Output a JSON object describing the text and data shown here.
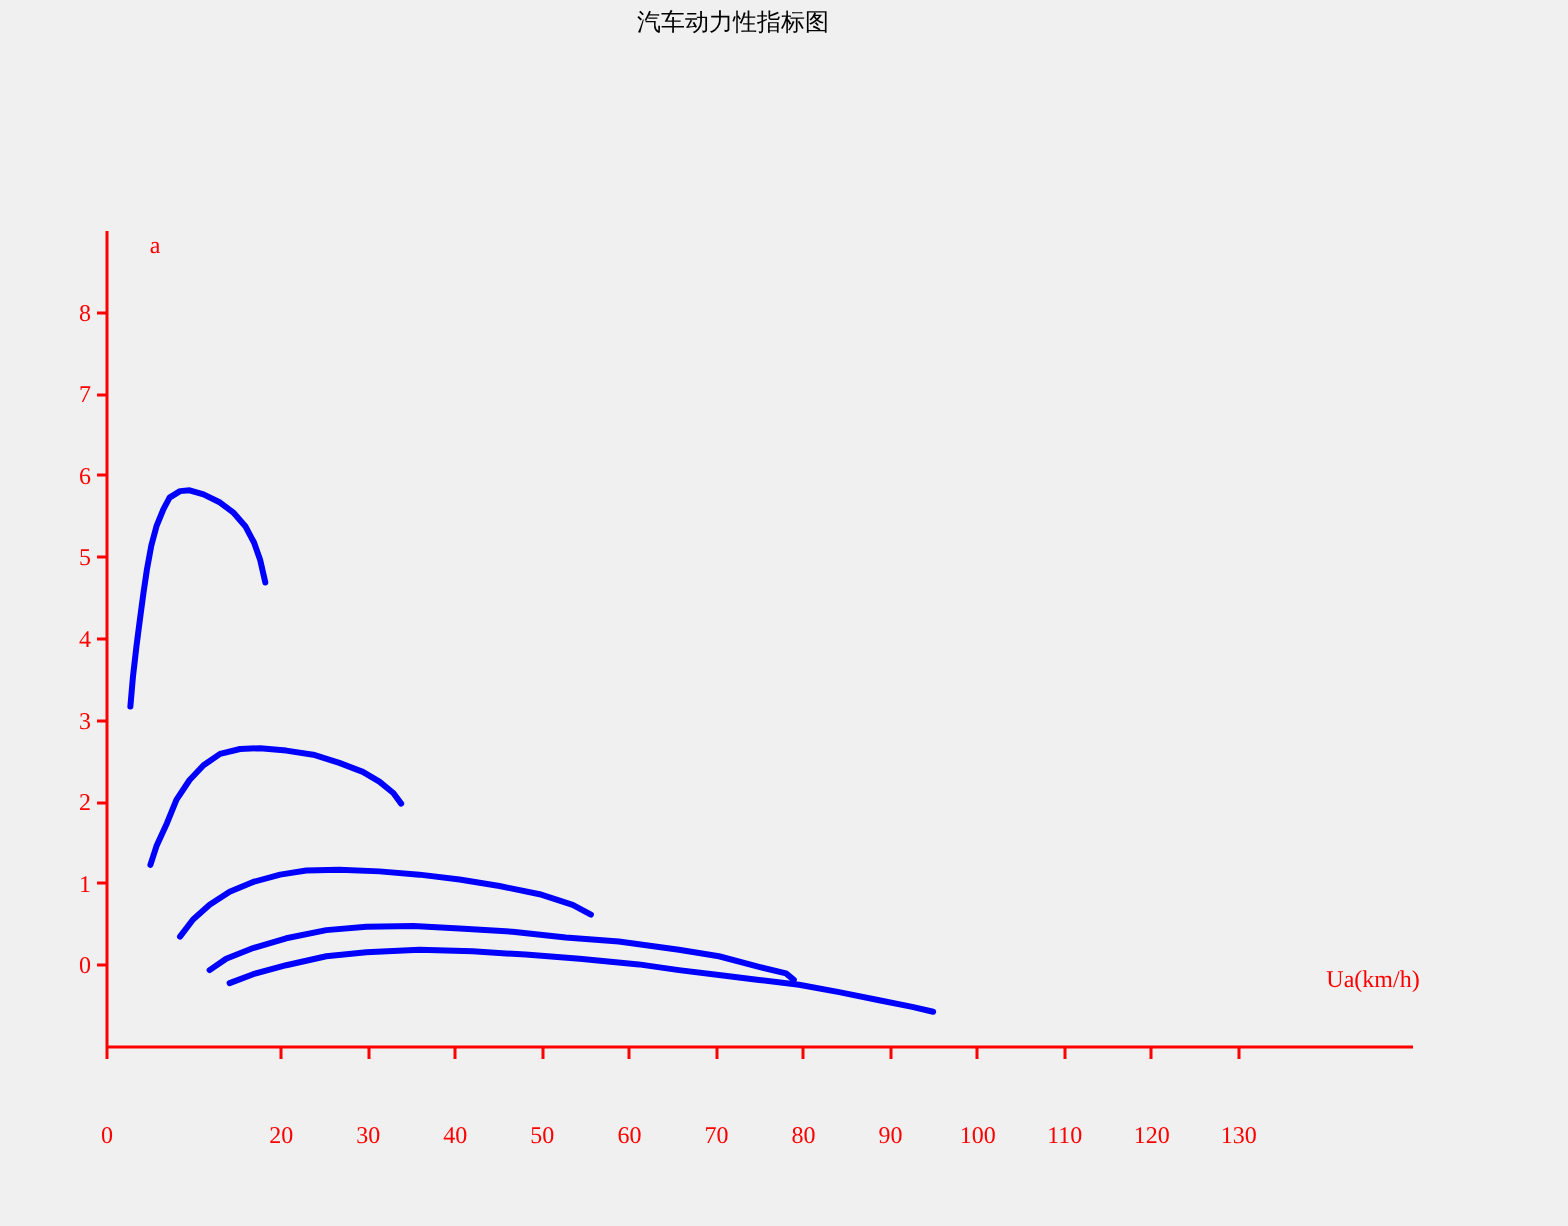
{
  "chart_data": {
    "type": "line",
    "title": "汽车动力性指标图",
    "xlabel": "Ua(km/h)",
    "ylabel": "a",
    "xlim": [
      0,
      150
    ],
    "ylim": [
      -1,
      9
    ],
    "xticks": [
      0,
      20,
      30,
      40,
      50,
      60,
      70,
      80,
      90,
      100,
      110,
      120,
      130
    ],
    "yticks": [
      0,
      1,
      2,
      3,
      4,
      5,
      6,
      7,
      8
    ],
    "grid": false,
    "series": [
      {
        "color": "#0000ff",
        "x": [
          2.8,
          3.1,
          3.5,
          3.9,
          4.3,
          4.7,
          5.2,
          5.8,
          6.6,
          7.3,
          8.5,
          9.6,
          11.2,
          13.1,
          14.6,
          16.0,
          17.0,
          17.7,
          18.3
        ],
        "values": [
          3.16,
          3.53,
          3.9,
          4.23,
          4.55,
          4.84,
          5.13,
          5.37,
          5.58,
          5.72,
          5.8,
          5.81,
          5.76,
          5.66,
          5.54,
          5.37,
          5.17,
          4.96,
          4.68
        ]
      },
      {
        "color": "#0000ff",
        "x": [
          5.1,
          5.8,
          7.0,
          8.1,
          9.6,
          11.2,
          13.1,
          15.4,
          17.7,
          20.7,
          23.8,
          26.8,
          29.5,
          31.4,
          33.0,
          33.9
        ],
        "values": [
          1.22,
          1.45,
          1.73,
          2.02,
          2.26,
          2.44,
          2.58,
          2.64,
          2.65,
          2.62,
          2.57,
          2.47,
          2.36,
          2.24,
          2.1,
          1.97
        ]
      },
      {
        "color": "#0000ff",
        "x": [
          8.5,
          10.0,
          11.9,
          14.2,
          16.9,
          20.0,
          23.0,
          26.8,
          31.4,
          36.0,
          40.6,
          45.2,
          49.8,
          53.6,
          55.7
        ],
        "values": [
          0.34,
          0.55,
          0.73,
          0.89,
          1.01,
          1.1,
          1.15,
          1.16,
          1.14,
          1.1,
          1.04,
          0.96,
          0.86,
          0.73,
          0.61
        ]
      },
      {
        "color": "#0000ff",
        "x": [
          11.9,
          13.8,
          16.9,
          20.7,
          25.3,
          29.9,
          35.3,
          40.6,
          46.7,
          52.8,
          58.9,
          65.8,
          70.4,
          75.0,
          78.1,
          79.0
        ],
        "values": [
          -0.07,
          0.07,
          0.2,
          0.32,
          0.42,
          0.46,
          0.47,
          0.44,
          0.4,
          0.33,
          0.28,
          0.18,
          0.1,
          -0.03,
          -0.11,
          -0.19
        ]
      },
      {
        "color": "#0000ff",
        "x": [
          14.2,
          16.9,
          20.7,
          25.3,
          29.9,
          36.0,
          42.1,
          48.2,
          54.4,
          61.2,
          65.8,
          70.4,
          75.0,
          79.6,
          84.2,
          88.8,
          92.6,
          95.0
        ],
        "values": [
          -0.23,
          -0.12,
          -0.01,
          0.1,
          0.15,
          0.18,
          0.16,
          0.12,
          0.07,
          0.0,
          -0.07,
          -0.13,
          -0.19,
          -0.25,
          -0.34,
          -0.44,
          -0.52,
          -0.58
        ]
      }
    ]
  }
}
